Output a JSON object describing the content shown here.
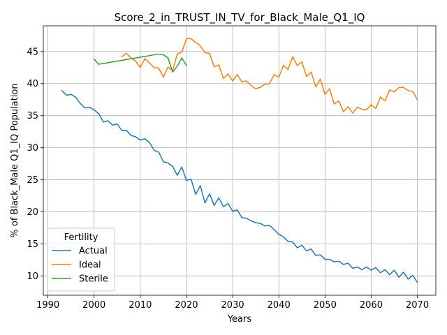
{
  "chart_data": {
    "type": "line",
    "title": "Score_2_in_TRUST_IN_TV_for_Black_Male_Q1_IQ",
    "xlabel": "Years",
    "ylabel": "% of Black_Male Q1_IQ Population",
    "xlim": [
      1989,
      2074
    ],
    "ylim": [
      7.0,
      49.0
    ],
    "xticks": [
      1990,
      2000,
      2010,
      2020,
      2030,
      2040,
      2050,
      2060,
      2070
    ],
    "yticks": [
      10,
      15,
      20,
      25,
      30,
      35,
      40,
      45
    ],
    "grid": true,
    "legend": {
      "title": "Fertility",
      "placement": "lower-left"
    },
    "series": [
      {
        "name": "Actual",
        "color": "#1f77b4",
        "x": [
          1993,
          1994,
          1995,
          1996,
          1997,
          1998,
          1999,
          2000,
          2001,
          2002,
          2003,
          2004,
          2005,
          2006,
          2007,
          2008,
          2009,
          2010,
          2011,
          2012,
          2013,
          2014,
          2015,
          2016,
          2017,
          2018,
          2019,
          2020,
          2021,
          2022,
          2023,
          2024,
          2025,
          2026,
          2027,
          2028,
          2029,
          2030,
          2031,
          2032,
          2033,
          2034,
          2035,
          2036,
          2037,
          2038,
          2039,
          2040,
          2041,
          2042,
          2043,
          2044,
          2045,
          2046,
          2047,
          2048,
          2049,
          2050,
          2051,
          2052,
          2053,
          2054,
          2055,
          2056,
          2057,
          2058,
          2059,
          2060,
          2061,
          2062,
          2063,
          2064,
          2065,
          2066,
          2067,
          2068,
          2069,
          2070
        ],
        "values": [
          38.9,
          38.2,
          38.3,
          37.9,
          36.9,
          36.2,
          36.3,
          35.9,
          35.3,
          34.0,
          34.2,
          33.5,
          33.7,
          32.7,
          32.7,
          31.9,
          31.7,
          31.2,
          31.4,
          30.8,
          29.6,
          29.3,
          27.8,
          27.6,
          27.1,
          25.7,
          27.0,
          24.9,
          25.1,
          22.7,
          24.1,
          21.4,
          22.8,
          21.0,
          22.2,
          20.8,
          21.3,
          20.1,
          20.3,
          19.1,
          19.0,
          18.6,
          18.3,
          18.2,
          17.8,
          17.9,
          17.2,
          16.5,
          16.1,
          15.4,
          15.3,
          14.4,
          14.8,
          13.9,
          14.2,
          13.2,
          13.3,
          12.6,
          12.6,
          12.2,
          12.3,
          11.8,
          12.0,
          11.2,
          11.4,
          11.0,
          11.4,
          10.9,
          11.3,
          10.5,
          11.0,
          10.2,
          10.9,
          9.8,
          10.6,
          9.5,
          10.1,
          9.0
        ]
      },
      {
        "name": "Ideal",
        "color": "#ff7f0e",
        "x": [
          2006,
          2007,
          2008,
          2009,
          2010,
          2011,
          2012,
          2013,
          2014,
          2015,
          2016,
          2017,
          2018,
          2019,
          2020,
          2021,
          2022,
          2023,
          2024,
          2025,
          2026,
          2027,
          2028,
          2029,
          2030,
          2031,
          2032,
          2033,
          2034,
          2035,
          2036,
          2037,
          2038,
          2039,
          2040,
          2041,
          2042,
          2043,
          2044,
          2045,
          2046,
          2047,
          2048,
          2049,
          2050,
          2051,
          2052,
          2053,
          2054,
          2055,
          2056,
          2057,
          2058,
          2059,
          2060,
          2061,
          2062,
          2063,
          2064,
          2065,
          2066,
          2067,
          2068,
          2069,
          2070
        ],
        "values": [
          44.2,
          44.7,
          44.0,
          43.5,
          42.5,
          43.9,
          43.2,
          42.5,
          42.4,
          41.0,
          42.6,
          42.0,
          44.6,
          44.9,
          47.0,
          47.0,
          46.4,
          45.9,
          44.8,
          44.7,
          42.6,
          42.9,
          40.8,
          41.5,
          40.4,
          41.4,
          40.3,
          40.4,
          39.7,
          39.2,
          39.4,
          39.9,
          40.0,
          41.4,
          41.0,
          42.8,
          42.2,
          44.2,
          42.8,
          43.4,
          41.1,
          41.8,
          39.5,
          40.7,
          38.3,
          39.2,
          36.8,
          37.3,
          35.6,
          36.4,
          35.4,
          36.3,
          36.0,
          35.9,
          36.7,
          36.1,
          37.9,
          37.3,
          39.0,
          38.7,
          39.4,
          39.4,
          38.9,
          38.8,
          37.5
        ]
      },
      {
        "name": "Sterile",
        "color": "#2ca02c",
        "x": [
          2000,
          2001,
          2014,
          2015,
          2016,
          2017,
          2018,
          2019,
          2020
        ],
        "values": [
          43.8,
          43.0,
          44.6,
          44.5,
          44.0,
          41.8,
          42.7,
          44.0,
          42.8
        ]
      }
    ]
  }
}
